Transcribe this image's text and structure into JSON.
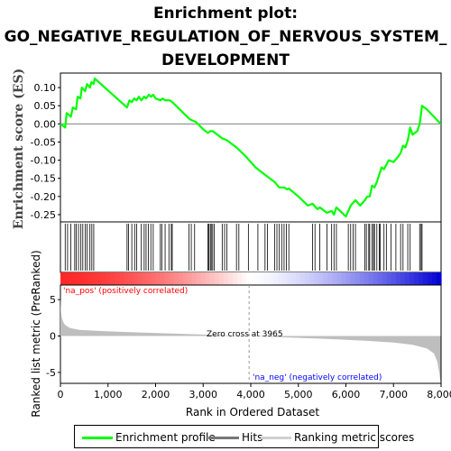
{
  "title_lines": [
    "Enrichment plot:",
    "GO_NEGATIVE_REGULATION_OF_NERVOUS_SYSTEM_",
    "DEVELOPMENT"
  ],
  "legend": {
    "enrichment": "Enrichment profile",
    "hits": "Hits",
    "ranking": "Ranking metric scores"
  },
  "colors": {
    "enrichment": "#00ff00",
    "hits": "#000000",
    "ranking": "#bebebe",
    "pos_label": "#ff0000",
    "neg_label": "#0000ff",
    "zero_line": "#808080"
  },
  "chart_data": {
    "type": "line",
    "es_panel": {
      "ylabel": "Enrichment score (ES)",
      "ylim": [
        -0.27,
        0.14
      ],
      "yticks": [
        0.1,
        0.05,
        0.0,
        -0.05,
        -0.1,
        -0.15,
        -0.2,
        -0.25
      ],
      "ytick_labels": [
        "0.10",
        "0.05",
        "0.00",
        "-0.05",
        "-0.10",
        "-0.15",
        "-0.20",
        "-0.25"
      ],
      "x": [
        0,
        100,
        130,
        220,
        260,
        330,
        360,
        420,
        450,
        520,
        560,
        620,
        650,
        700,
        720,
        1400,
        1450,
        1500,
        1550,
        1600,
        1650,
        1700,
        1760,
        1800,
        1860,
        1900,
        1950,
        2000,
        2100,
        2150,
        2200,
        2300,
        2350,
        2700,
        2760,
        2850,
        3000,
        3100,
        3150,
        3200,
        3300,
        3400,
        3500,
        3700,
        3900,
        4100,
        4300,
        4500,
        4600,
        4700,
        4760,
        4800,
        5000,
        5200,
        5300,
        5400,
        5450,
        5500,
        5600,
        5700,
        5750,
        5800,
        6000,
        6050,
        6100,
        6200,
        6300,
        6400,
        6450,
        6500,
        6550,
        6600,
        6650,
        6700,
        6750,
        6800,
        6900,
        7000,
        7100,
        7150,
        7200,
        7250,
        7300,
        7350,
        7400,
        7500,
        7550,
        7600,
        7700,
        7990
      ],
      "y": [
        0.0,
        -0.01,
        0.03,
        0.02,
        0.045,
        0.04,
        0.075,
        0.07,
        0.1,
        0.09,
        0.11,
        0.1,
        0.115,
        0.11,
        0.125,
        0.045,
        0.065,
        0.06,
        0.07,
        0.065,
        0.075,
        0.065,
        0.075,
        0.07,
        0.08,
        0.075,
        0.08,
        0.07,
        0.065,
        0.07,
        0.065,
        0.065,
        0.06,
        0.015,
        0.01,
        0.005,
        -0.015,
        -0.025,
        -0.02,
        -0.02,
        -0.03,
        -0.04,
        -0.045,
        -0.065,
        -0.09,
        -0.12,
        -0.14,
        -0.16,
        -0.175,
        -0.175,
        -0.18,
        -0.178,
        -0.2,
        -0.225,
        -0.22,
        -0.235,
        -0.23,
        -0.235,
        -0.245,
        -0.24,
        -0.25,
        -0.23,
        -0.255,
        -0.24,
        -0.225,
        -0.21,
        -0.225,
        -0.21,
        -0.2,
        -0.2,
        -0.17,
        -0.175,
        -0.16,
        -0.14,
        -0.12,
        -0.125,
        -0.1,
        -0.105,
        -0.09,
        -0.08,
        -0.06,
        -0.065,
        -0.045,
        -0.01,
        -0.03,
        -0.02,
        0.0,
        0.05,
        0.04,
        0.0
      ]
    },
    "hits": [
      100,
      150,
      220,
      300,
      330,
      380,
      430,
      470,
      520,
      560,
      620,
      660,
      700,
      1400,
      1430,
      1500,
      1560,
      1600,
      1700,
      1760,
      1800,
      1850,
      1900,
      1950,
      2100,
      2130,
      2200,
      2280,
      2330,
      2350,
      2700,
      2750,
      2820,
      3100,
      3120,
      3150,
      3170,
      3200,
      3230,
      3400,
      3450,
      3500,
      3700,
      3750,
      3950,
      4150,
      4300,
      4350,
      4500,
      4550,
      4600,
      4650,
      4700,
      4750,
      4800,
      5300,
      5350,
      5450,
      5600,
      5700,
      5750,
      5800,
      6050,
      6100,
      6150,
      6200,
      6400,
      6430,
      6480,
      6500,
      6550,
      6580,
      6600,
      6650,
      6700,
      6720,
      6800,
      6850,
      6950,
      7050,
      7150,
      7200,
      7300,
      7350,
      7550,
      7580,
      7600
    ],
    "ranking_panel": {
      "ylabel": "Ranked list metric (PreRanked)",
      "ylim": [
        -6.5,
        7
      ],
      "yticks": [
        5,
        0,
        -5
      ],
      "ytick_labels": [
        "5",
        "0",
        "-5"
      ],
      "zero_cross_label": "Zero cross at 3965",
      "zero_cross": 3965,
      "pos_label": "'na_pos' (positively correlated)",
      "neg_label": "'na_neg' (negatively correlated)",
      "profile_x": [
        0,
        10,
        30,
        60,
        100,
        200,
        400,
        800,
        1600,
        2400,
        3200,
        3965,
        4800,
        5600,
        6400,
        7000,
        7400,
        7700,
        7850,
        7920,
        7960,
        7990
      ],
      "profile_y": [
        5.5,
        3.6,
        2.5,
        1.9,
        1.5,
        1.1,
        0.85,
        0.7,
        0.5,
        0.32,
        0.15,
        0.0,
        -0.2,
        -0.4,
        -0.65,
        -0.9,
        -1.2,
        -1.7,
        -2.4,
        -3.5,
        -5.0,
        -6.3
      ]
    },
    "xlabel": "Rank in Ordered Dataset",
    "xlim": [
      0,
      8000
    ],
    "xticks": [
      0,
      1000,
      2000,
      3000,
      4000,
      5000,
      6000,
      7000,
      8000
    ],
    "xtick_labels": [
      "0",
      "1,000",
      "2,000",
      "3,000",
      "4,000",
      "5,000",
      "6,000",
      "7,000",
      "8,000"
    ]
  }
}
